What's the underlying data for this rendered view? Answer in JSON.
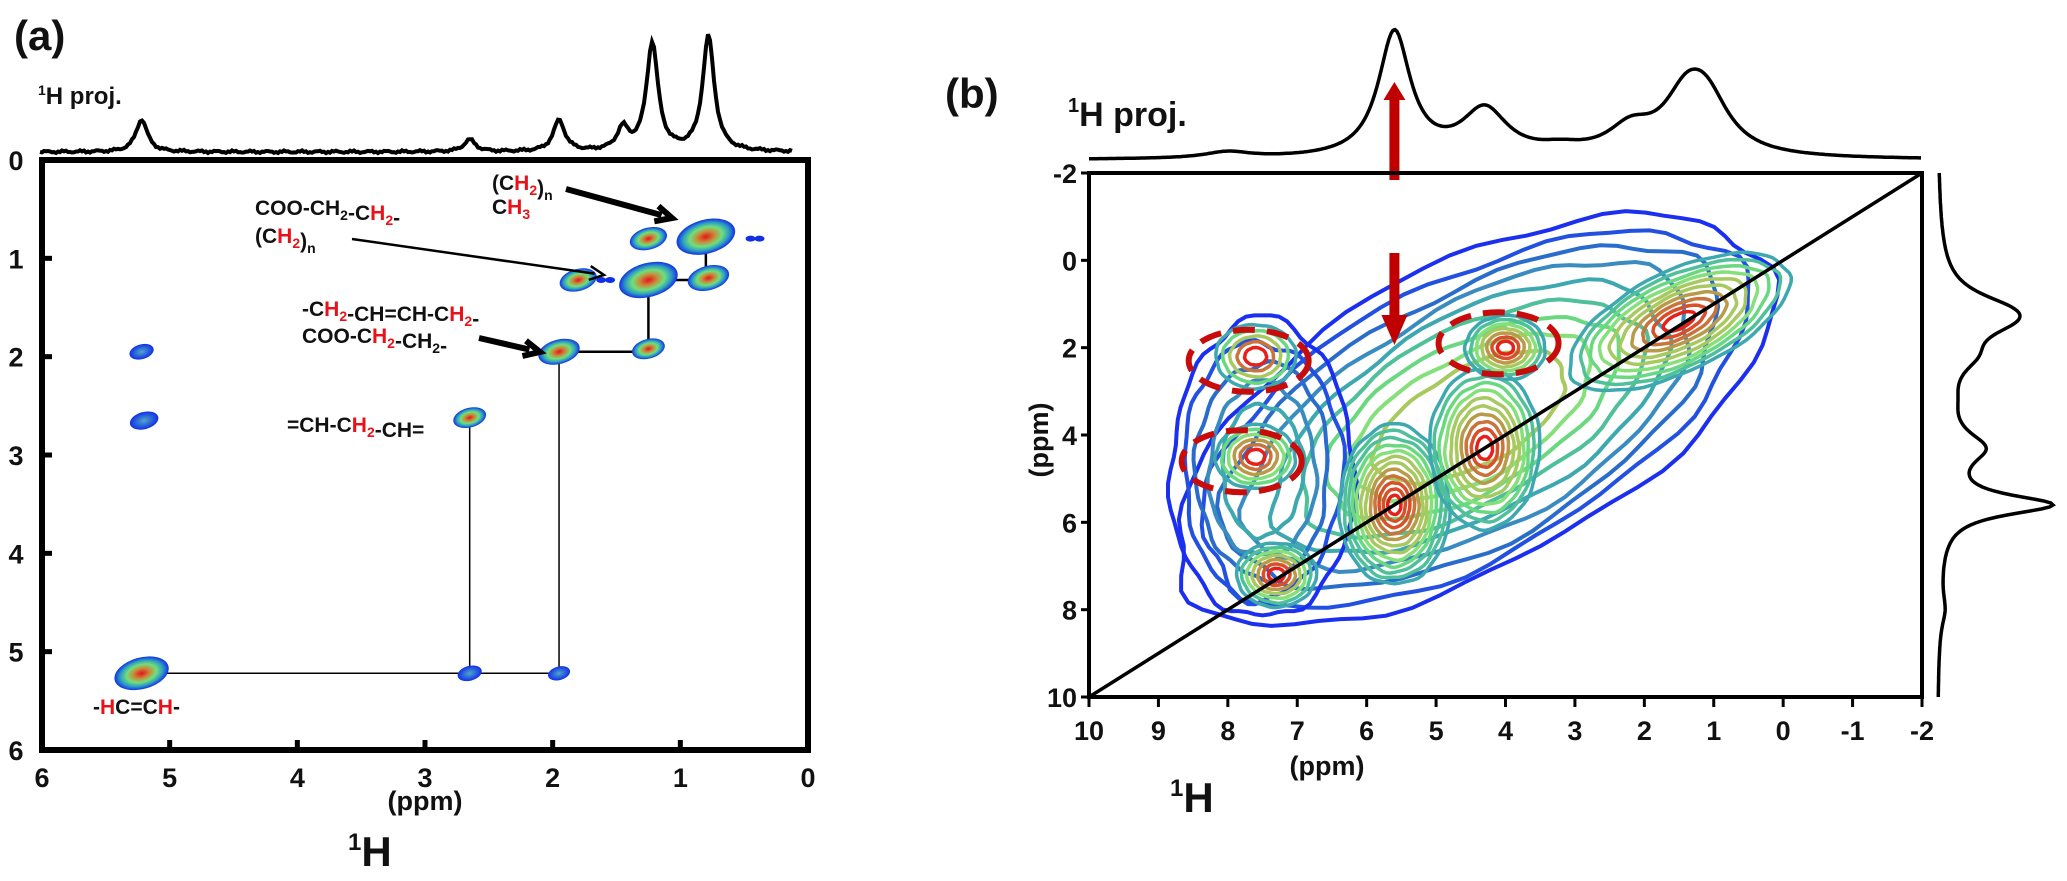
{
  "chart_data": [
    {
      "id": "a",
      "type": "heatmap",
      "panel_label": "(a)",
      "title": "",
      "projection_label": {
        "sup": "1",
        "text": "H proj."
      },
      "xlabel": "(ppm)",
      "nucleus_label": {
        "sup": "1",
        "text": "H"
      },
      "xlim": [
        6,
        0
      ],
      "ylim": [
        0,
        6
      ],
      "x_ticks": [
        "6",
        "5",
        "4",
        "3",
        "2",
        "1",
        "0"
      ],
      "y_ticks": [
        "0",
        "1",
        "2",
        "3",
        "4",
        "5",
        "6"
      ],
      "grid": false,
      "projection": {
        "baseline": 0,
        "peaks": [
          {
            "ppm": 5.22,
            "height": 0.27
          },
          {
            "ppm": 2.65,
            "height": 0.1
          },
          {
            "ppm": 1.95,
            "height": 0.26
          },
          {
            "ppm": 1.45,
            "height": 0.18
          },
          {
            "ppm": 1.22,
            "height": 0.9
          },
          {
            "ppm": 0.78,
            "height": 0.96
          }
        ]
      },
      "cross_peaks": [
        {
          "x": 0.8,
          "y": 0.78,
          "intensity": 1.0
        },
        {
          "x": 1.25,
          "y": 1.22,
          "intensity": 1.0
        },
        {
          "x": 0.78,
          "y": 1.2,
          "intensity": 0.6
        },
        {
          "x": 1.25,
          "y": 0.8,
          "intensity": 0.5
        },
        {
          "x": 1.8,
          "y": 1.22,
          "intensity": 0.5
        },
        {
          "x": 1.95,
          "y": 1.95,
          "intensity": 0.6
        },
        {
          "x": 1.25,
          "y": 1.92,
          "intensity": 0.4
        },
        {
          "x": 2.65,
          "y": 2.62,
          "intensity": 0.4
        },
        {
          "x": 5.22,
          "y": 1.95,
          "intensity": 0.2
        },
        {
          "x": 5.2,
          "y": 2.65,
          "intensity": 0.3
        },
        {
          "x": 5.22,
          "y": 5.22,
          "intensity": 0.9
        },
        {
          "x": 2.65,
          "y": 5.22,
          "intensity": 0.2
        },
        {
          "x": 1.95,
          "y": 5.22,
          "intensity": 0.15
        }
      ],
      "connectivity_lines": [
        {
          "from": [
            5.22,
            5.22
          ],
          "to": [
            1.95,
            5.22
          ]
        },
        {
          "from": [
            2.65,
            5.22
          ],
          "to": [
            2.65,
            2.65
          ]
        },
        {
          "from": [
            1.95,
            5.22
          ],
          "to": [
            1.95,
            1.95
          ]
        },
        {
          "from": [
            1.95,
            1.95
          ],
          "to": [
            1.25,
            1.95
          ]
        },
        {
          "from": [
            1.25,
            1.95
          ],
          "to": [
            1.25,
            1.22
          ]
        },
        {
          "from": [
            1.25,
            1.22
          ],
          "to": [
            0.8,
            1.22
          ]
        },
        {
          "from": [
            0.8,
            1.22
          ],
          "to": [
            0.8,
            0.78
          ]
        }
      ],
      "annotations": [
        {
          "lines": [
            [
              {
                "t": "(C"
              },
              {
                "t": "H",
                "red": true
              },
              {
                "t": "2",
                "sub": true,
                "red": true
              },
              {
                "t": ")"
              },
              {
                "t": "n",
                "sub": true
              }
            ],
            [
              {
                "t": "C"
              },
              {
                "t": "H",
                "red": true
              },
              {
                "t": "3",
                "sub": true,
                "red": true
              }
            ]
          ]
        },
        {
          "lines": [
            [
              {
                "t": "COO-CH"
              },
              {
                "t": "2",
                "sub": true
              },
              {
                "t": "-C"
              },
              {
                "t": "H",
                "red": true
              },
              {
                "t": "2",
                "sub": true,
                "red": true
              },
              {
                "t": "-"
              }
            ],
            [
              {
                "t": "(C"
              },
              {
                "t": "H",
                "red": true
              },
              {
                "t": "2",
                "sub": true,
                "red": true
              },
              {
                "t": ")"
              },
              {
                "t": "n",
                "sub": true
              }
            ]
          ]
        },
        {
          "lines": [
            [
              {
                "t": "-C"
              },
              {
                "t": "H",
                "red": true
              },
              {
                "t": "2",
                "sub": true,
                "red": true
              },
              {
                "t": "-CH=CH-C"
              },
              {
                "t": "H",
                "red": true
              },
              {
                "t": "2",
                "sub": true,
                "red": true
              },
              {
                "t": "-"
              }
            ],
            [
              {
                "t": "COO-C"
              },
              {
                "t": "H",
                "red": true
              },
              {
                "t": "2",
                "sub": true,
                "red": true
              },
              {
                "t": "-CH"
              },
              {
                "t": "2",
                "sub": true
              },
              {
                "t": "-"
              }
            ]
          ]
        },
        {
          "lines": [
            [
              {
                "t": "=CH-C"
              },
              {
                "t": "H",
                "red": true
              },
              {
                "t": "2",
                "sub": true,
                "red": true
              },
              {
                "t": "-CH="
              }
            ]
          ]
        },
        {
          "lines": [
            [
              {
                "t": "-"
              },
              {
                "t": "H",
                "red": true
              },
              {
                "t": "C=C"
              },
              {
                "t": "H",
                "red": true
              },
              {
                "t": "-"
              }
            ]
          ]
        }
      ]
    },
    {
      "id": "b",
      "type": "heatmap",
      "panel_label": "(b)",
      "title": "",
      "projection_label": {
        "sup": "1",
        "text": "H proj."
      },
      "xlabel": "(ppm)",
      "ylabel": "(ppm)",
      "nucleus_label": {
        "sup": "1",
        "text": "H"
      },
      "xlim": [
        10,
        -2
      ],
      "ylim": [
        -2,
        10
      ],
      "x_ticks": [
        "10",
        "9",
        "8",
        "7",
        "6",
        "5",
        "4",
        "3",
        "2",
        "1",
        "0",
        "-1",
        "-2"
      ],
      "y_ticks": [
        "-2",
        "0",
        "2",
        "4",
        "6",
        "8",
        "10"
      ],
      "grid": false,
      "diagonal": true,
      "projection": {
        "peaks": [
          {
            "ppm": 8.0,
            "height": 0.05
          },
          {
            "ppm": 5.6,
            "height": 1.0
          },
          {
            "ppm": 4.3,
            "height": 0.37
          },
          {
            "ppm": 3.2,
            "height": 0.05
          },
          {
            "ppm": 2.2,
            "height": 0.2
          },
          {
            "ppm": 1.4,
            "height": 0.4
          },
          {
            "ppm": 1.1,
            "height": 0.38
          }
        ]
      },
      "contour_centers": [
        {
          "x": 5.6,
          "y": 5.6,
          "intensity": 1.0
        },
        {
          "x": 4.3,
          "y": 4.3,
          "intensity": 0.75
        },
        {
          "x": 1.5,
          "y": 1.4,
          "intensity": 0.8
        },
        {
          "x": 7.3,
          "y": 7.2,
          "intensity": 0.45
        },
        {
          "x": 7.6,
          "y": 4.5,
          "intensity": 0.35
        },
        {
          "x": 7.6,
          "y": 2.2,
          "intensity": 0.3
        },
        {
          "x": 4.0,
          "y": 2.0,
          "intensity": 0.45
        }
      ],
      "highlight_ellipses": [
        {
          "x": 7.7,
          "y": 2.3,
          "label": "cross-peak region"
        },
        {
          "x": 7.8,
          "y": 4.6,
          "label": "cross-peak region"
        },
        {
          "x": 4.1,
          "y": 1.9,
          "label": "cross-peak region"
        }
      ],
      "arrows": [
        {
          "ppm": 5.6,
          "direction": "up",
          "color": "#c00000"
        },
        {
          "ppm": 5.6,
          "direction": "down",
          "color": "#c00000"
        }
      ]
    }
  ]
}
